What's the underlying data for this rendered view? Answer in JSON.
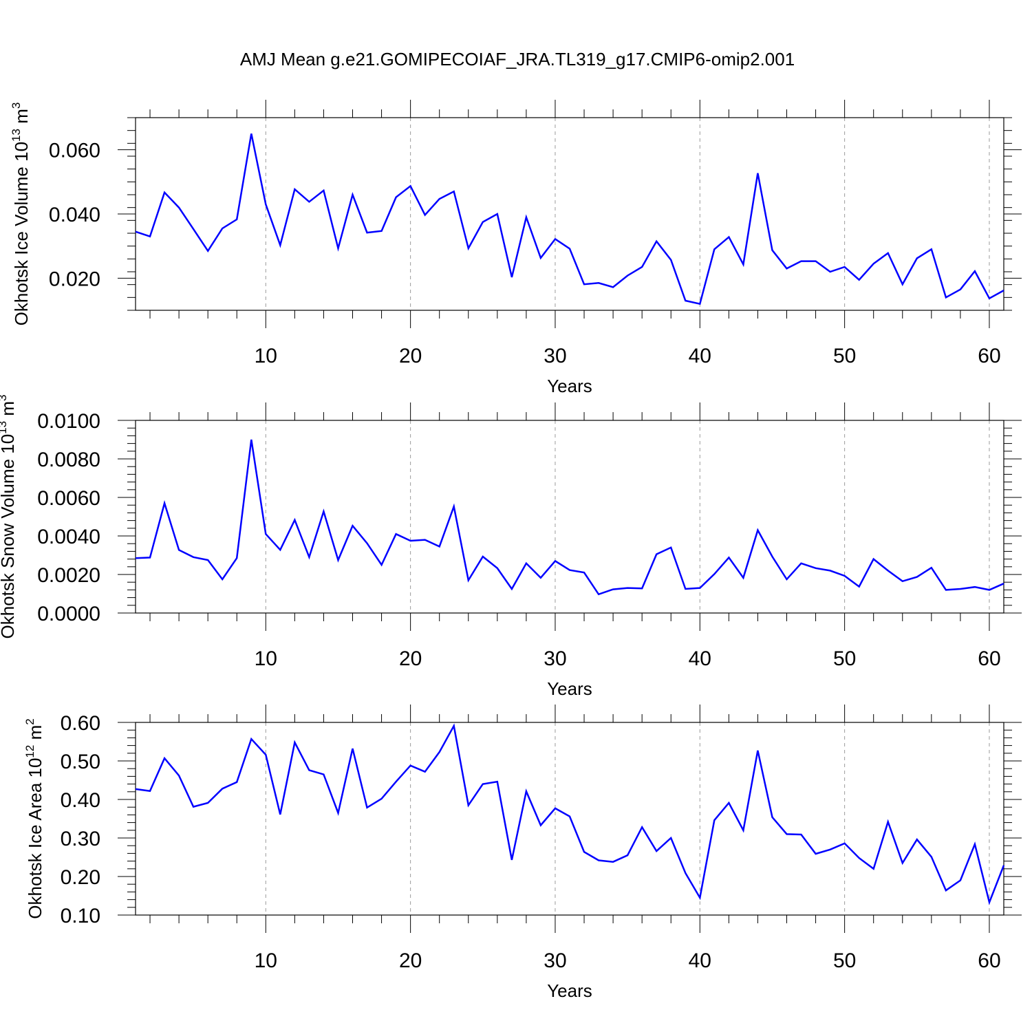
{
  "title": "AMJ Mean g.e21.GOMIPECOIAF_JRA.TL319_g17.CMIP6-omip2.001",
  "colors": {
    "series": "#0000ff",
    "axes": "#000000",
    "grid": "#9a9a9a"
  },
  "chart_data": [
    {
      "type": "line",
      "ylabel": "Okhotsk Ice Volume 10",
      "ylabel_exp": "13",
      "ylabel_unit": "m",
      "ylabel_unit_exp": "3",
      "xlabel": "Years",
      "xlim": [
        1,
        61
      ],
      "ylim": [
        0.01,
        0.07
      ],
      "x_ticks": [
        10,
        20,
        30,
        40,
        50,
        60
      ],
      "x_tick_labels": [
        "10",
        "20",
        "30",
        "40",
        "50",
        "60"
      ],
      "y_ticks": [
        0.02,
        0.04,
        0.06
      ],
      "y_tick_labels": [
        "0.020",
        "0.040",
        "0.060"
      ],
      "y_minor_step": 0.004,
      "grid": "vertical dashed at major x ticks",
      "series": [
        {
          "color": "#0000ff",
          "x": [
            1,
            2,
            3,
            4,
            5,
            6,
            7,
            8,
            9,
            10,
            11,
            12,
            13,
            14,
            15,
            16,
            17,
            18,
            19,
            20,
            21,
            22,
            23,
            24,
            25,
            26,
            27,
            28,
            29,
            30,
            31,
            32,
            33,
            34,
            35,
            36,
            37,
            38,
            39,
            40,
            41,
            42,
            43,
            44,
            45,
            46,
            47,
            48,
            49,
            50,
            51,
            52,
            53,
            54,
            55,
            56,
            57,
            58,
            59,
            60,
            61
          ],
          "values": [
            0.0345,
            0.033,
            0.0467,
            0.042,
            0.0353,
            0.0285,
            0.0355,
            0.0383,
            0.065,
            0.043,
            0.0303,
            0.0477,
            0.0438,
            0.0473,
            0.0293,
            0.046,
            0.0342,
            0.0347,
            0.0452,
            0.0487,
            0.0397,
            0.0447,
            0.047,
            0.0293,
            0.0375,
            0.04,
            0.0203,
            0.039,
            0.0263,
            0.0322,
            0.0292,
            0.0181,
            0.0185,
            0.0172,
            0.0208,
            0.0235,
            0.0315,
            0.0257,
            0.013,
            0.012,
            0.029,
            0.0328,
            0.0243,
            0.0527,
            0.0287,
            0.023,
            0.0253,
            0.0253,
            0.022,
            0.0235,
            0.0195,
            0.0245,
            0.0278,
            0.0181,
            0.0262,
            0.029,
            0.014,
            0.0165,
            0.0222,
            0.0137,
            0.0162
          ]
        }
      ]
    },
    {
      "type": "line",
      "ylabel": "Okhotsk Snow Volume 10",
      "ylabel_exp": "13",
      "ylabel_unit": "m",
      "ylabel_unit_exp": "3",
      "xlabel": "Years",
      "xlim": [
        1,
        61
      ],
      "ylim": [
        0.0,
        0.01
      ],
      "x_ticks": [
        10,
        20,
        30,
        40,
        50,
        60
      ],
      "x_tick_labels": [
        "10",
        "20",
        "30",
        "40",
        "50",
        "60"
      ],
      "y_ticks": [
        0.0,
        0.002,
        0.004,
        0.006,
        0.008,
        0.01
      ],
      "y_tick_labels": [
        "0.0000",
        "0.0020",
        "0.0040",
        "0.0060",
        "0.0080",
        "0.0100"
      ],
      "y_minor_step": 0.0004,
      "grid": "vertical dashed at major x ticks",
      "series": [
        {
          "color": "#0000ff",
          "x": [
            1,
            2,
            3,
            4,
            5,
            6,
            7,
            8,
            9,
            10,
            11,
            12,
            13,
            14,
            15,
            16,
            17,
            18,
            19,
            20,
            21,
            22,
            23,
            24,
            25,
            26,
            27,
            28,
            29,
            30,
            31,
            32,
            33,
            34,
            35,
            36,
            37,
            38,
            39,
            40,
            41,
            42,
            43,
            44,
            45,
            46,
            47,
            48,
            49,
            50,
            51,
            52,
            53,
            54,
            55,
            56,
            57,
            58,
            59,
            60,
            61
          ],
          "values": [
            0.00285,
            0.00288,
            0.0057,
            0.00327,
            0.0029,
            0.00275,
            0.00175,
            0.00285,
            0.009,
            0.0041,
            0.00328,
            0.00483,
            0.0029,
            0.00527,
            0.00275,
            0.00453,
            0.00362,
            0.0025,
            0.0041,
            0.00375,
            0.0038,
            0.00345,
            0.00553,
            0.0017,
            0.00293,
            0.00233,
            0.00125,
            0.00258,
            0.00183,
            0.0027,
            0.00223,
            0.0021,
            0.00097,
            0.00123,
            0.0013,
            0.00128,
            0.00305,
            0.0034,
            0.00125,
            0.0013,
            0.00202,
            0.00288,
            0.00183,
            0.0043,
            0.00293,
            0.00175,
            0.00258,
            0.00233,
            0.0022,
            0.00193,
            0.00137,
            0.0028,
            0.0022,
            0.00165,
            0.00187,
            0.00235,
            0.0012,
            0.00125,
            0.00135,
            0.0012,
            0.00153
          ]
        }
      ]
    },
    {
      "type": "line",
      "ylabel": "Okhotsk Ice Area 10",
      "ylabel_exp": "12",
      "ylabel_unit": "m",
      "ylabel_unit_exp": "2",
      "xlabel": "Years",
      "xlim": [
        1,
        61
      ],
      "ylim": [
        0.1,
        0.6
      ],
      "x_ticks": [
        10,
        20,
        30,
        40,
        50,
        60
      ],
      "x_tick_labels": [
        "10",
        "20",
        "30",
        "40",
        "50",
        "60"
      ],
      "y_ticks": [
        0.1,
        0.2,
        0.3,
        0.4,
        0.5,
        0.6
      ],
      "y_tick_labels": [
        "0.10",
        "0.20",
        "0.30",
        "0.40",
        "0.50",
        "0.60"
      ],
      "y_minor_step": 0.02,
      "grid": "vertical dashed at major x ticks",
      "series": [
        {
          "color": "#0000ff",
          "x": [
            1,
            2,
            3,
            4,
            5,
            6,
            7,
            8,
            9,
            10,
            11,
            12,
            13,
            14,
            15,
            16,
            17,
            18,
            19,
            20,
            21,
            22,
            23,
            24,
            25,
            26,
            27,
            28,
            29,
            30,
            31,
            32,
            33,
            34,
            35,
            36,
            37,
            38,
            39,
            40,
            41,
            42,
            43,
            44,
            45,
            46,
            47,
            48,
            49,
            50,
            51,
            52,
            53,
            54,
            55,
            56,
            57,
            58,
            59,
            60,
            61
          ],
          "values": [
            0.427,
            0.422,
            0.507,
            0.462,
            0.381,
            0.391,
            0.428,
            0.445,
            0.557,
            0.516,
            0.361,
            0.548,
            0.476,
            0.465,
            0.365,
            0.532,
            0.379,
            0.402,
            0.446,
            0.488,
            0.472,
            0.523,
            0.591,
            0.385,
            0.44,
            0.446,
            0.243,
            0.421,
            0.333,
            0.377,
            0.356,
            0.264,
            0.242,
            0.238,
            0.255,
            0.328,
            0.266,
            0.3,
            0.209,
            0.145,
            0.346,
            0.391,
            0.32,
            0.527,
            0.354,
            0.31,
            0.309,
            0.259,
            0.27,
            0.286,
            0.248,
            0.22,
            0.342,
            0.235,
            0.296,
            0.251,
            0.164,
            0.19,
            0.284,
            0.133,
            0.229
          ]
        }
      ]
    }
  ]
}
